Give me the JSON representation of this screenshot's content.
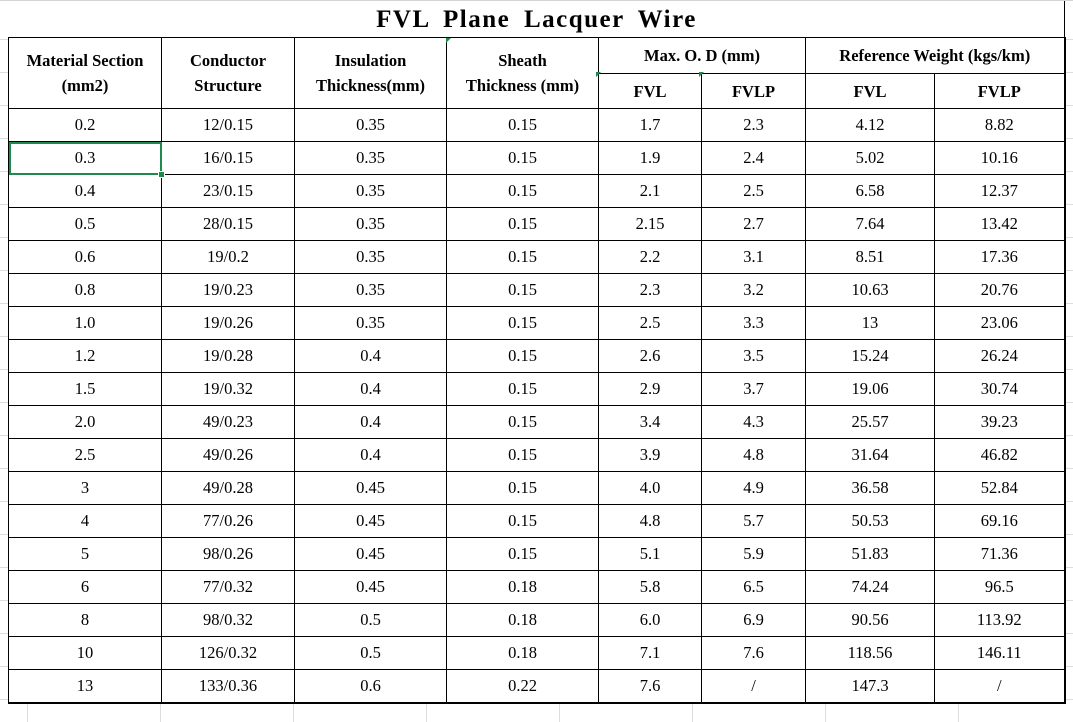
{
  "sheet": {
    "title": "FVL  Plane  Lacquer  Wire",
    "selected_cell": "0.3"
  },
  "headers": {
    "material_section": [
      "Material Section",
      "(mm2)"
    ],
    "conductor_structure": [
      "Conductor",
      "Structure"
    ],
    "insulation_thickness": [
      "Insulation",
      "Thickness(mm)"
    ],
    "sheath_thickness": [
      "Sheath",
      "Thickness (mm)"
    ],
    "max_od": "Max. O. D (mm)",
    "reference_weight": "Reference Weight (kgs/km)",
    "sub": {
      "od_fvl": "FVL",
      "od_fvlp": "FVLP",
      "wt_fvl": "FVL",
      "wt_fvlp": "FVLP"
    }
  },
  "rows": [
    [
      "0.2",
      "12/0.15",
      "0.35",
      "0.15",
      "1.7",
      "2.3",
      "4.12",
      "8.82"
    ],
    [
      "0.3",
      "16/0.15",
      "0.35",
      "0.15",
      "1.9",
      "2.4",
      "5.02",
      "10.16"
    ],
    [
      "0.4",
      "23/0.15",
      "0.35",
      "0.15",
      "2.1",
      "2.5",
      "6.58",
      "12.37"
    ],
    [
      "0.5",
      "28/0.15",
      "0.35",
      "0.15",
      "2.15",
      "2.7",
      "7.64",
      "13.42"
    ],
    [
      "0.6",
      "19/0.2",
      "0.35",
      "0.15",
      "2.2",
      "3.1",
      "8.51",
      "17.36"
    ],
    [
      "0.8",
      "19/0.23",
      "0.35",
      "0.15",
      "2.3",
      "3.2",
      "10.63",
      "20.76"
    ],
    [
      "1.0",
      "19/0.26",
      "0.35",
      "0.15",
      "2.5",
      "3.3",
      "13",
      "23.06"
    ],
    [
      "1.2",
      "19/0.28",
      "0.4",
      "0.15",
      "2.6",
      "3.5",
      "15.24",
      "26.24"
    ],
    [
      "1.5",
      "19/0.32",
      "0.4",
      "0.15",
      "2.9",
      "3.7",
      "19.06",
      "30.74"
    ],
    [
      "2.0",
      "49/0.23",
      "0.4",
      "0.15",
      "3.4",
      "4.3",
      "25.57",
      "39.23"
    ],
    [
      "2.5",
      "49/0.26",
      "0.4",
      "0.15",
      "3.9",
      "4.8",
      "31.64",
      "46.82"
    ],
    [
      "3",
      "49/0.28",
      "0.45",
      "0.15",
      "4.0",
      "4.9",
      "36.58",
      "52.84"
    ],
    [
      "4",
      "77/0.26",
      "0.45",
      "0.15",
      "4.8",
      "5.7",
      "50.53",
      "69.16"
    ],
    [
      "5",
      "98/0.26",
      "0.45",
      "0.15",
      "5.1",
      "5.9",
      "51.83",
      "71.36"
    ],
    [
      "6",
      "77/0.32",
      "0.45",
      "0.18",
      "5.8",
      "6.5",
      "74.24",
      "96.5"
    ],
    [
      "8",
      "98/0.32",
      "0.5",
      "0.18",
      "6.0",
      "6.9",
      "90.56",
      "113.92"
    ],
    [
      "10",
      "126/0.32",
      "0.5",
      "0.18",
      "7.1",
      "7.6",
      "118.56",
      "146.11"
    ],
    [
      "13",
      "133/0.36",
      "0.6",
      "0.22",
      "7.6",
      "/",
      "147.3",
      "/"
    ]
  ],
  "colors": {
    "selection": "#1e8a4f",
    "gridline": "#dcdcdc",
    "border": "#000000"
  }
}
